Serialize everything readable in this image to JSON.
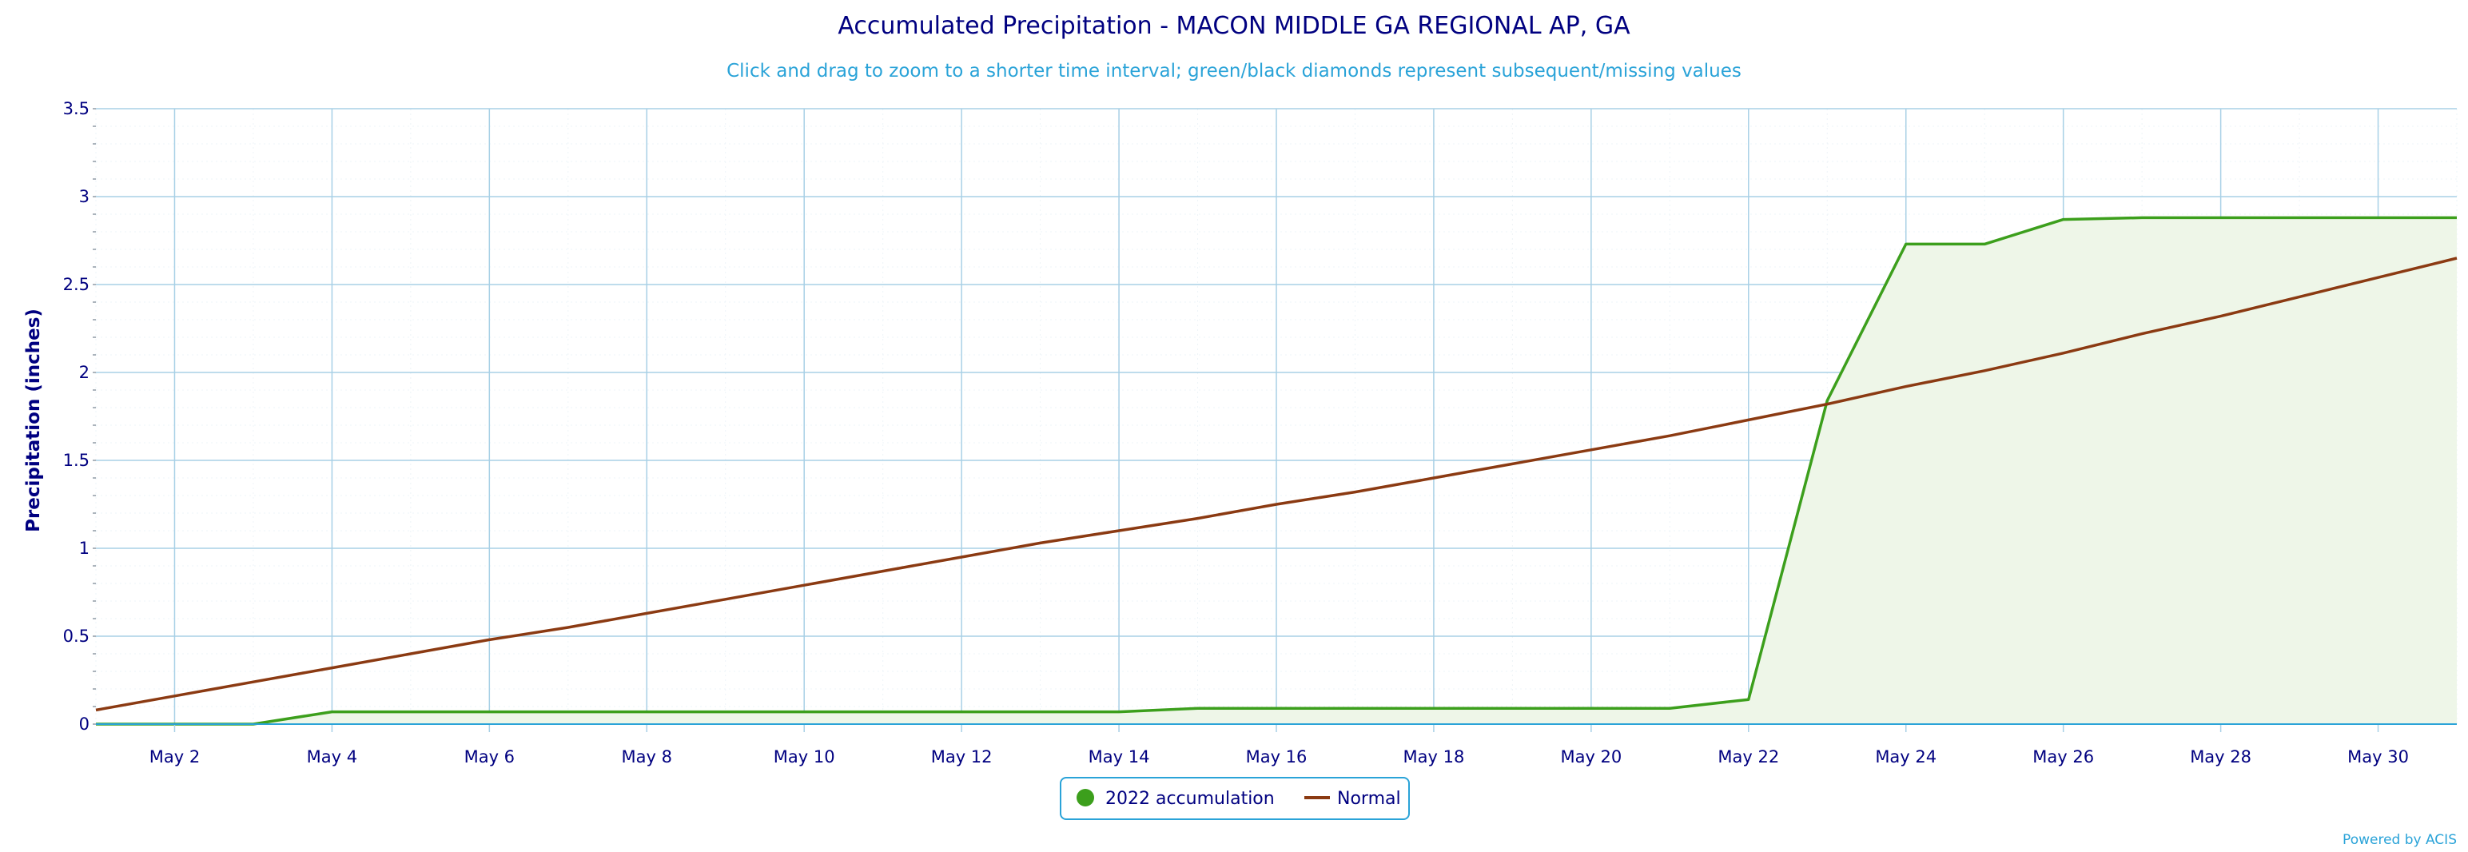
{
  "chart_data": {
    "type": "line",
    "title": "Accumulated Precipitation - MACON MIDDLE GA REGIONAL AP, GA",
    "subtitle": "Click and drag to zoom to a shorter time interval; green/black diamonds represent subsequent/missing values",
    "ylabel": "Precipitation (inches)",
    "xlabel": "",
    "ylim": [
      0,
      3.5
    ],
    "yticks": [
      "0",
      "0.5",
      "1",
      "1.5",
      "2",
      "2.5",
      "3",
      "3.5"
    ],
    "xlim": [
      "May 1",
      "May 31"
    ],
    "xticks": [
      "May 2",
      "May 4",
      "May 6",
      "May 8",
      "May 10",
      "May 12",
      "May 14",
      "May 16",
      "May 18",
      "May 20",
      "May 22",
      "May 24",
      "May 26",
      "May 28",
      "May 30"
    ],
    "x": [
      "May 1",
      "May 2",
      "May 3",
      "May 4",
      "May 5",
      "May 6",
      "May 7",
      "May 8",
      "May 9",
      "May 10",
      "May 11",
      "May 12",
      "May 13",
      "May 14",
      "May 15",
      "May 16",
      "May 17",
      "May 18",
      "May 19",
      "May 20",
      "May 21",
      "May 22",
      "May 23",
      "May 24",
      "May 25",
      "May 26",
      "May 27",
      "May 28",
      "May 29",
      "May 30",
      "May 31"
    ],
    "series": [
      {
        "name": "2022 accumulation",
        "color": "#3c9f1c",
        "fill": "#eef6e8",
        "values": [
          0.0,
          0.0,
          0.0,
          0.07,
          0.07,
          0.07,
          0.07,
          0.07,
          0.07,
          0.07,
          0.07,
          0.07,
          0.07,
          0.07,
          0.09,
          0.09,
          0.09,
          0.09,
          0.09,
          0.09,
          0.09,
          0.14,
          1.84,
          2.73,
          2.73,
          2.87,
          2.88,
          2.88,
          2.88,
          2.88,
          2.88
        ]
      },
      {
        "name": "Normal",
        "color": "#8b3a12",
        "values": [
          0.08,
          0.16,
          0.24,
          0.32,
          0.4,
          0.48,
          0.55,
          0.63,
          0.71,
          0.79,
          0.87,
          0.95,
          1.03,
          1.1,
          1.17,
          1.25,
          1.32,
          1.4,
          1.48,
          1.56,
          1.64,
          1.73,
          1.82,
          1.92,
          2.01,
          2.11,
          2.22,
          2.32,
          2.43,
          2.54,
          2.65
        ]
      }
    ],
    "grid": true,
    "legend_position": "bottom-center",
    "credits": "Powered by ACIS",
    "colors": {
      "title": "#000080",
      "subtitle": "#2aa3d8",
      "grid": "#a8d0e6",
      "axis": "#2aa3d8",
      "legend_border": "#2aa3d8"
    }
  }
}
